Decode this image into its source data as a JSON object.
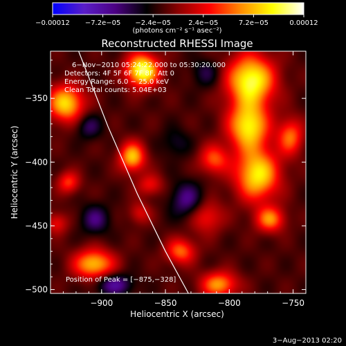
{
  "chart_data": {
    "type": "heatmap",
    "title": "Reconstructed RHESSI Image",
    "xlabel": "Heliocentric X (arcsec)",
    "ylabel": "Heliocentric Y (arcsec)",
    "x_ticks": [
      -900,
      -850,
      -800,
      -750
    ],
    "x_tick_labels": [
      "−900",
      "−850",
      "−800",
      "−750"
    ],
    "y_ticks": [
      -350,
      -400,
      -450,
      -500
    ],
    "y_tick_labels": [
      "−350",
      "−400",
      "−450",
      "−500"
    ],
    "xlim": [
      -940,
      -740
    ],
    "ylim": [
      -503,
      -313
    ],
    "colorbar": {
      "range": [
        -0.00012,
        0.00012
      ],
      "tick_values": [
        -0.00012,
        -7.2e-05,
        -2.4e-05,
        2.4e-05,
        7.2e-05,
        0.00012
      ],
      "tick_labels": [
        "−0.00012",
        "−7.2e−05",
        "−2.4e−05",
        "2.4e−05",
        "7.2e−05",
        "0.00012"
      ],
      "units_label": "(photons cm⁻² s⁻¹ asec⁻²)"
    },
    "info_lines": [
      "6−Nov−2010 05:24:22.000 to 05:30:20.000",
      "Detectors: 4F 5F 6F 7F 8F, Att 0",
      "Energy Range: 6.0 − 25.0 keV",
      "Clean    Total counts: 5.04E+03"
    ],
    "peak_label": "Position of Peak = [−875,−328]",
    "peak_position": [
      -875,
      -328
    ],
    "blobs": [
      {
        "x": -868,
        "y": -328,
        "v": 1.0,
        "sx": 9,
        "sy": 9
      },
      {
        "x": -783,
        "y": -336,
        "v": 0.95,
        "sx": 13,
        "sy": 14
      },
      {
        "x": -785,
        "y": -372,
        "v": 0.85,
        "sx": 11,
        "sy": 13
      },
      {
        "x": -778,
        "y": -410,
        "v": 0.85,
        "sx": 12,
        "sy": 14
      },
      {
        "x": -812,
        "y": -398,
        "v": 0.5,
        "sx": 8,
        "sy": 8
      },
      {
        "x": -876,
        "y": -396,
        "v": 0.75,
        "sx": 7,
        "sy": 8
      },
      {
        "x": -928,
        "y": -354,
        "v": 0.8,
        "sx": 10,
        "sy": 10
      },
      {
        "x": -926,
        "y": -416,
        "v": 0.45,
        "sx": 6,
        "sy": 6
      },
      {
        "x": -906,
        "y": -480,
        "v": 0.75,
        "sx": 11,
        "sy": 8
      },
      {
        "x": -838,
        "y": -470,
        "v": 0.55,
        "sx": 8,
        "sy": 7
      },
      {
        "x": -768,
        "y": -445,
        "v": 0.6,
        "sx": 8,
        "sy": 7
      },
      {
        "x": -808,
        "y": -496,
        "v": 0.65,
        "sx": 10,
        "sy": 7
      },
      {
        "x": -752,
        "y": -380,
        "v": 0.55,
        "sx": 7,
        "sy": 10
      },
      {
        "x": -862,
        "y": -418,
        "v": 0.35,
        "sx": 7,
        "sy": 6
      },
      {
        "x": -818,
        "y": -443,
        "v": 0.4,
        "sx": 9,
        "sy": 9
      },
      {
        "x": -935,
        "y": -448,
        "v": 0.35,
        "sx": 6,
        "sy": 6
      },
      {
        "x": -870,
        "y": -440,
        "v": 0.3,
        "sx": 6,
        "sy": 6
      },
      {
        "x": -905,
        "y": -445,
        "v": -0.35,
        "sx": 8,
        "sy": 8
      },
      {
        "x": -833,
        "y": -430,
        "v": -0.4,
        "sx": 9,
        "sy": 10
      },
      {
        "x": -890,
        "y": -496,
        "v": -0.45,
        "sx": 10,
        "sy": 6
      },
      {
        "x": -818,
        "y": -330,
        "v": -0.25,
        "sx": 8,
        "sy": 8
      },
      {
        "x": -910,
        "y": -372,
        "v": -0.3,
        "sx": 7,
        "sy": 7
      },
      {
        "x": -842,
        "y": -385,
        "v": -0.2,
        "sx": 8,
        "sy": 8
      }
    ]
  },
  "timestamp": "3−Aug−2013 02:20",
  "colors": {
    "background": "#000000",
    "text": "#ffffff",
    "limb": "#ffffff",
    "colormap": [
      "#0000ff",
      "#5a1ec8",
      "#4b0082",
      "#000000",
      "#8b0000",
      "#ff0000",
      "#ff8c00",
      "#ffff00",
      "#ffffff"
    ]
  }
}
